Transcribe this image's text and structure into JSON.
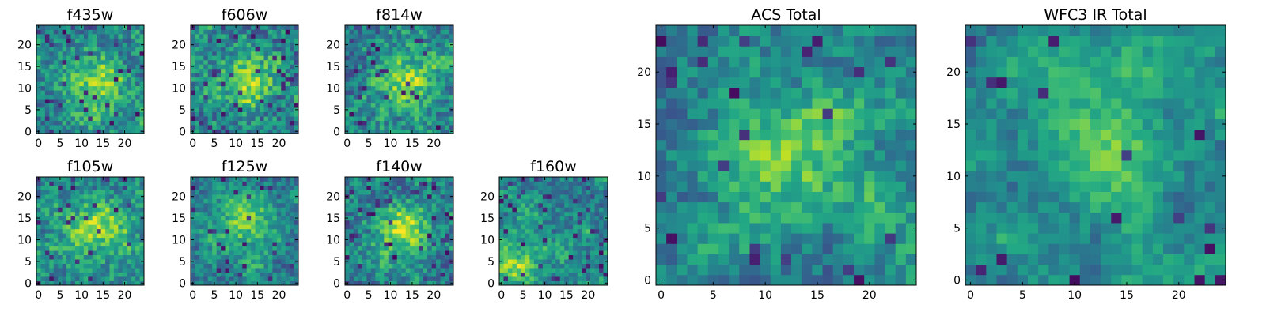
{
  "chart_data": [
    {
      "type": "heatmap",
      "title": "f435w",
      "grid_size": 25,
      "x_ticks": [
        "0",
        "5",
        "10",
        "15",
        "20"
      ],
      "y_ticks": [
        "0",
        "5",
        "10",
        "15",
        "20"
      ],
      "colormap": "viridis",
      "hot_spot": [
        13,
        11
      ],
      "noise": 0.55,
      "seed": 11,
      "dark_fraction": 0.05
    },
    {
      "type": "heatmap",
      "title": "f606w",
      "grid_size": 25,
      "x_ticks": [
        "0",
        "5",
        "10",
        "15",
        "20"
      ],
      "y_ticks": [
        "0",
        "5",
        "10",
        "15",
        "20"
      ],
      "colormap": "viridis",
      "hot_spot": [
        12,
        12
      ],
      "noise": 0.6,
      "seed": 23,
      "dark_fraction": 0.06
    },
    {
      "type": "heatmap",
      "title": "f814w",
      "grid_size": 25,
      "x_ticks": [
        "0",
        "5",
        "10",
        "15",
        "20"
      ],
      "y_ticks": [
        "0",
        "5",
        "10",
        "15",
        "20"
      ],
      "colormap": "viridis",
      "hot_spot": [
        14,
        12
      ],
      "noise": 0.55,
      "seed": 37,
      "dark_fraction": 0.05
    },
    {
      "type": "heatmap",
      "title": "f105w",
      "grid_size": 25,
      "x_ticks": [
        "0",
        "5",
        "10",
        "15",
        "20"
      ],
      "y_ticks": [
        "0",
        "5",
        "10",
        "15",
        "20"
      ],
      "colormap": "viridis",
      "hot_spot": [
        14,
        13
      ],
      "noise": 0.5,
      "seed": 41,
      "dark_fraction": 0.05
    },
    {
      "type": "heatmap",
      "title": "f125w",
      "grid_size": 25,
      "x_ticks": [
        "0",
        "5",
        "10",
        "15",
        "20"
      ],
      "y_ticks": [
        "0",
        "5",
        "10",
        "15",
        "20"
      ],
      "colormap": "viridis",
      "hot_spot": [
        12,
        14
      ],
      "noise": 0.45,
      "seed": 53,
      "dark_fraction": 0.05
    },
    {
      "type": "heatmap",
      "title": "f140w",
      "grid_size": 25,
      "x_ticks": [
        "0",
        "5",
        "10",
        "15",
        "20"
      ],
      "y_ticks": [
        "0",
        "5",
        "10",
        "15",
        "20"
      ],
      "colormap": "viridis",
      "hot_spot": [
        13,
        12
      ],
      "noise": 0.5,
      "seed": 67,
      "dark_fraction": 0.06
    },
    {
      "type": "heatmap",
      "title": "f160w",
      "grid_size": 25,
      "x_ticks": [
        "0",
        "5",
        "10",
        "15",
        "20"
      ],
      "y_ticks": [
        "0",
        "5",
        "10",
        "15",
        "20"
      ],
      "colormap": "viridis",
      "hot_spot": [
        3,
        3
      ],
      "noise": 0.45,
      "seed": 79,
      "dark_fraction": 0.07
    },
    {
      "type": "heatmap",
      "title": "ACS Total",
      "grid_size": 25,
      "x_ticks": [
        "0",
        "5",
        "10",
        "15",
        "20"
      ],
      "y_ticks": [
        "0",
        "5",
        "10",
        "15",
        "20"
      ],
      "colormap": "viridis",
      "hot_spot": [
        13,
        12
      ],
      "noise": 0.4,
      "seed": 97,
      "dark_fraction": 0.04
    },
    {
      "type": "heatmap",
      "title": "WFC3 IR Total",
      "grid_size": 25,
      "x_ticks": [
        "0",
        "5",
        "10",
        "15",
        "20"
      ],
      "y_ticks": [
        "0",
        "5",
        "10",
        "15",
        "20"
      ],
      "colormap": "viridis",
      "hot_spot": [
        12,
        13
      ],
      "noise": 0.3,
      "seed": 113,
      "dark_fraction": 0.03
    }
  ]
}
